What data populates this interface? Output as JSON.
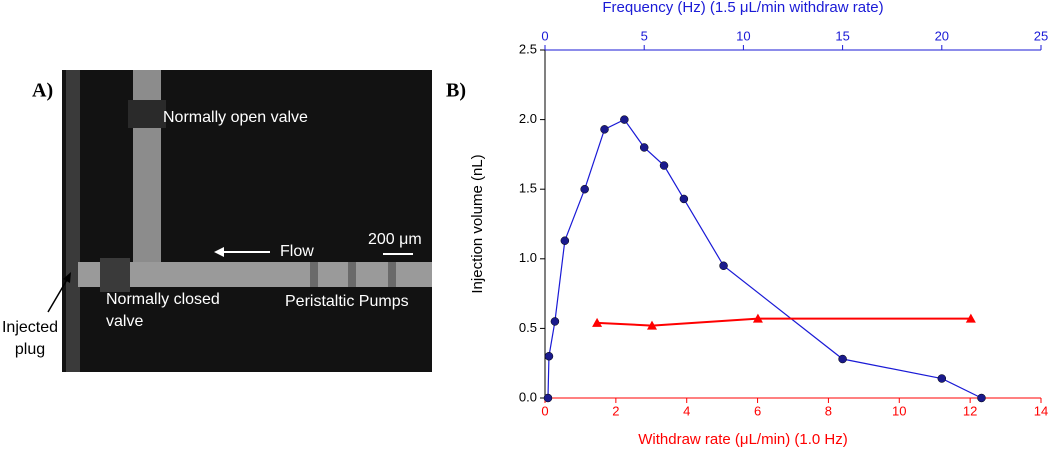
{
  "panel_labels": [
    "A)",
    "B)"
  ],
  "image": {
    "top_valve": "Normally open valve",
    "flow": "Flow",
    "scale": "200 μm",
    "bottom_valve": [
      "Normally closed",
      "valve"
    ],
    "pumps": "Peristaltic Pumps",
    "plug": [
      "Injected",
      "plug"
    ]
  },
  "chart_data": {
    "type": "line",
    "x_label": "Withdraw rate (μL/min) (1.0 Hz)",
    "x2_label": "Frequency (Hz) (1.5 μL/min withdraw rate)",
    "y_label": "Injection volume (nL)",
    "xlim": [
      0,
      14
    ],
    "xticks": [
      0,
      2,
      4,
      6,
      8,
      10,
      12,
      14
    ],
    "x_color": "#ff0000",
    "x2lim": [
      0,
      25
    ],
    "x2ticks": [
      0,
      5,
      10,
      15,
      20,
      25
    ],
    "x2_color": "#1a1ad6",
    "ylim": [
      0,
      2.5
    ],
    "yticks": [
      {
        "value": 0,
        "label": "0.0"
      },
      {
        "value": 0.5,
        "label": "0.5"
      },
      {
        "value": 1,
        "label": "1.0"
      },
      {
        "value": 1.5,
        "label": "1.5"
      },
      {
        "value": 2,
        "label": "2.0"
      },
      {
        "value": 2.5,
        "label": "2.5"
      }
    ],
    "series": [
      {
        "axis": "x2",
        "color": "#1a1ad6",
        "marker": "circle",
        "marker_color": "#1a1a8c",
        "x": [
          0.15,
          0.2,
          0.5,
          1,
          2,
          3,
          4,
          5,
          6,
          7,
          9,
          15,
          20,
          22
        ],
        "values": [
          0.0,
          0.3,
          0.55,
          1.13,
          1.5,
          1.93,
          2.0,
          1.8,
          1.67,
          1.43,
          0.95,
          0.28,
          0.14,
          0.0
        ]
      },
      {
        "axis": "x",
        "color": "#ff0000",
        "marker": "triangle",
        "marker_color": "#ff0000",
        "x": [
          1.47,
          3.02,
          6.01,
          12.02
        ],
        "values": [
          0.54,
          0.52,
          0.57,
          0.57
        ]
      }
    ]
  }
}
